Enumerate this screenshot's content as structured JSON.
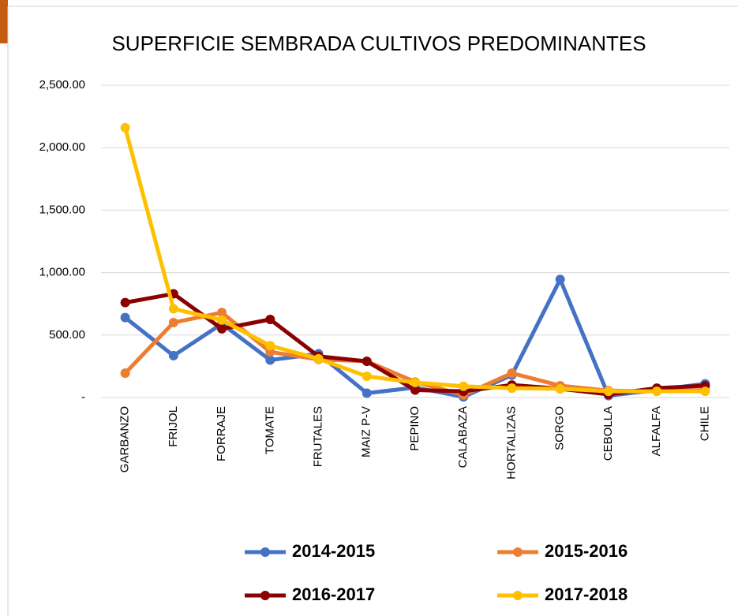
{
  "chart_data": {
    "type": "line",
    "title": "SUPERFICIE SEMBRADA CULTIVOS PREDOMINANTES",
    "categories": [
      "GARBANZO",
      "FRIJOL",
      "FORRAJE",
      "TOMATE",
      "FRUTALES",
      "MAIZ P-V",
      "PEPINO",
      "CALABAZA",
      "HORTALIZAS",
      "SORGO",
      "CEBOLLA",
      "ALFALFA",
      "CHILE"
    ],
    "series": [
      {
        "name": "2014-2015",
        "color": "#4472c4",
        "values": [
          640,
          335,
          590,
          300,
          350,
          35,
          80,
          5,
          180,
          945,
          15,
          60,
          110
        ]
      },
      {
        "name": "2015-2016",
        "color": "#ed7d31",
        "values": [
          195,
          600,
          680,
          365,
          305,
          290,
          125,
          20,
          195,
          95,
          55,
          50,
          60
        ]
      },
      {
        "name": "2016-2017",
        "color": "#8b0000",
        "values": [
          760,
          830,
          550,
          625,
          330,
          290,
          60,
          50,
          100,
          70,
          25,
          75,
          95
        ]
      },
      {
        "name": "2017-2018",
        "color": "#ffc000",
        "values": [
          2160,
          710,
          620,
          415,
          310,
          170,
          120,
          90,
          75,
          70,
          50,
          50,
          50
        ]
      }
    ],
    "ylim": [
      0,
      2500
    ],
    "yticks": [
      {
        "value": 0,
        "label": "-"
      },
      {
        "value": 500,
        "label": "500.00"
      },
      {
        "value": 1000,
        "label": "1,000.00"
      },
      {
        "value": 1500,
        "label": "1,500.00"
      },
      {
        "value": 2000,
        "label": "2,000.00"
      },
      {
        "value": 2500,
        "label": "2,500.00"
      }
    ],
    "grid": true,
    "legend": "bottom"
  }
}
